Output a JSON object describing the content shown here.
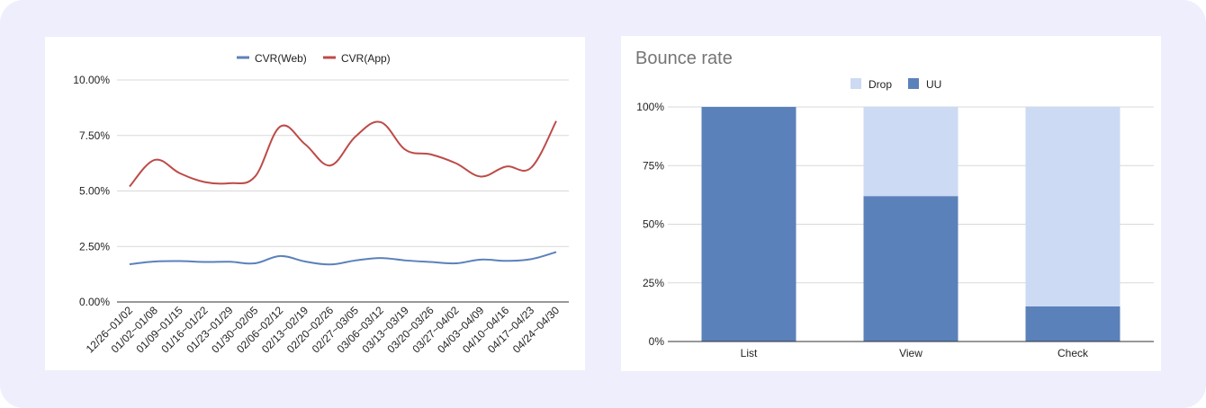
{
  "colors": {
    "background": "#eeeefc",
    "web": "#5b81bb",
    "app": "#bd4b48",
    "uu": "#5b81bb",
    "drop": "#ccdaf3",
    "grid": "#d9d9d9"
  },
  "chart_data": [
    {
      "type": "line",
      "title": "",
      "xlabel": "",
      "ylabel": "",
      "legend_position": "top",
      "grid": true,
      "ylim": [
        0,
        0.1
      ],
      "y_ticks": [
        "0.00%",
        "2.50%",
        "5.00%",
        "7.50%",
        "10.00%"
      ],
      "categories": [
        "12/26~01/02",
        "01/02~01/08",
        "01/09~01/15",
        "01/16~01/22",
        "01/23~01/29",
        "01/30~02/05",
        "02/06~02/12",
        "02/13~02/19",
        "02/20~02/26",
        "02/27~03/05",
        "03/06~03/12",
        "03/13~03/19",
        "03/20~03/26",
        "03/27~04/02",
        "04/03~04/09",
        "04/10~04/16",
        "04/17~04/23",
        "04/24~04/30"
      ],
      "series": [
        {
          "name": "CVR(Web)",
          "values": [
            0.017,
            0.0182,
            0.0184,
            0.018,
            0.0181,
            0.0174,
            0.0207,
            0.0182,
            0.0169,
            0.0187,
            0.0198,
            0.0187,
            0.018,
            0.0174,
            0.0191,
            0.0185,
            0.0193,
            0.0225
          ]
        },
        {
          "name": "CVR(App)",
          "values": [
            0.052,
            0.064,
            0.058,
            0.054,
            0.0535,
            0.0565,
            0.079,
            0.071,
            0.0615,
            0.0745,
            0.081,
            0.0685,
            0.0665,
            0.0625,
            0.0565,
            0.061,
            0.0605,
            0.0815
          ]
        }
      ]
    },
    {
      "type": "bar",
      "stacked": true,
      "title": "Bounce rate",
      "xlabel": "",
      "ylabel": "",
      "legend_position": "top",
      "grid": true,
      "ylim": [
        0,
        1
      ],
      "y_ticks": [
        "0%",
        "25%",
        "50%",
        "75%",
        "100%"
      ],
      "categories": [
        "List",
        "View",
        "Check"
      ],
      "series": [
        {
          "name": "UU",
          "values": [
            1.0,
            0.62,
            0.15
          ]
        },
        {
          "name": "Drop",
          "values": [
            0.0,
            0.38,
            0.85
          ]
        }
      ],
      "legend_order": [
        "Drop",
        "UU"
      ]
    }
  ]
}
